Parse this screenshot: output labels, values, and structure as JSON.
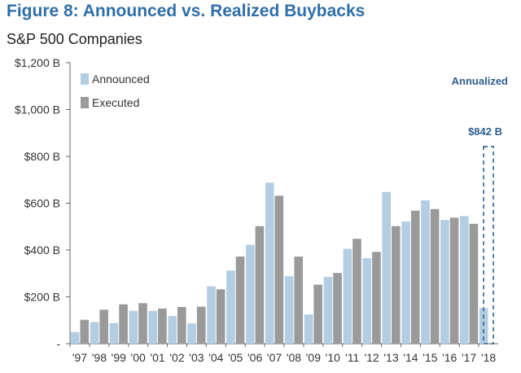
{
  "header": {
    "title": "Figure 8: Announced vs. Realized Buybacks",
    "subtitle": "S&P 500 Companies"
  },
  "colors": {
    "announced": "#b3cde3",
    "executed": "#9a9a9a",
    "annotation": "#2f5f8f"
  },
  "chart_data": {
    "type": "bar",
    "categories": [
      "'97",
      "'98",
      "'99",
      "'00",
      "'01",
      "'02",
      "'03",
      "'04",
      "'05",
      "'06",
      "'07",
      "'08",
      "'09",
      "'10",
      "'11",
      "'12",
      "'13",
      "'14",
      "'15",
      "'16",
      "'17",
      "'18"
    ],
    "series": [
      {
        "name": "Announced",
        "values": [
          50,
          92,
          88,
          140,
          140,
          118,
          87,
          245,
          312,
          422,
          688,
          288,
          125,
          285,
          405,
          365,
          648,
          522,
          612,
          528,
          545,
          152
        ]
      },
      {
        "name": "Executed",
        "values": [
          102,
          145,
          168,
          173,
          150,
          157,
          158,
          232,
          372,
          502,
          632,
          372,
          252,
          302,
          448,
          392,
          502,
          568,
          575,
          538,
          512,
          null
        ]
      }
    ],
    "ylim": [
      0,
      1200
    ],
    "yticks": [
      0,
      200,
      400,
      600,
      800,
      1000,
      1200
    ],
    "ytick_labels": [
      "-",
      "$200 B",
      "$400 B",
      "$600 B",
      "$800 B",
      "$1,000 B",
      "$1,200 B"
    ],
    "annualized": {
      "category": "'18",
      "value": 842,
      "label": "$842 B",
      "caption": "Annualized"
    },
    "legend": "top-left",
    "grid": false
  }
}
